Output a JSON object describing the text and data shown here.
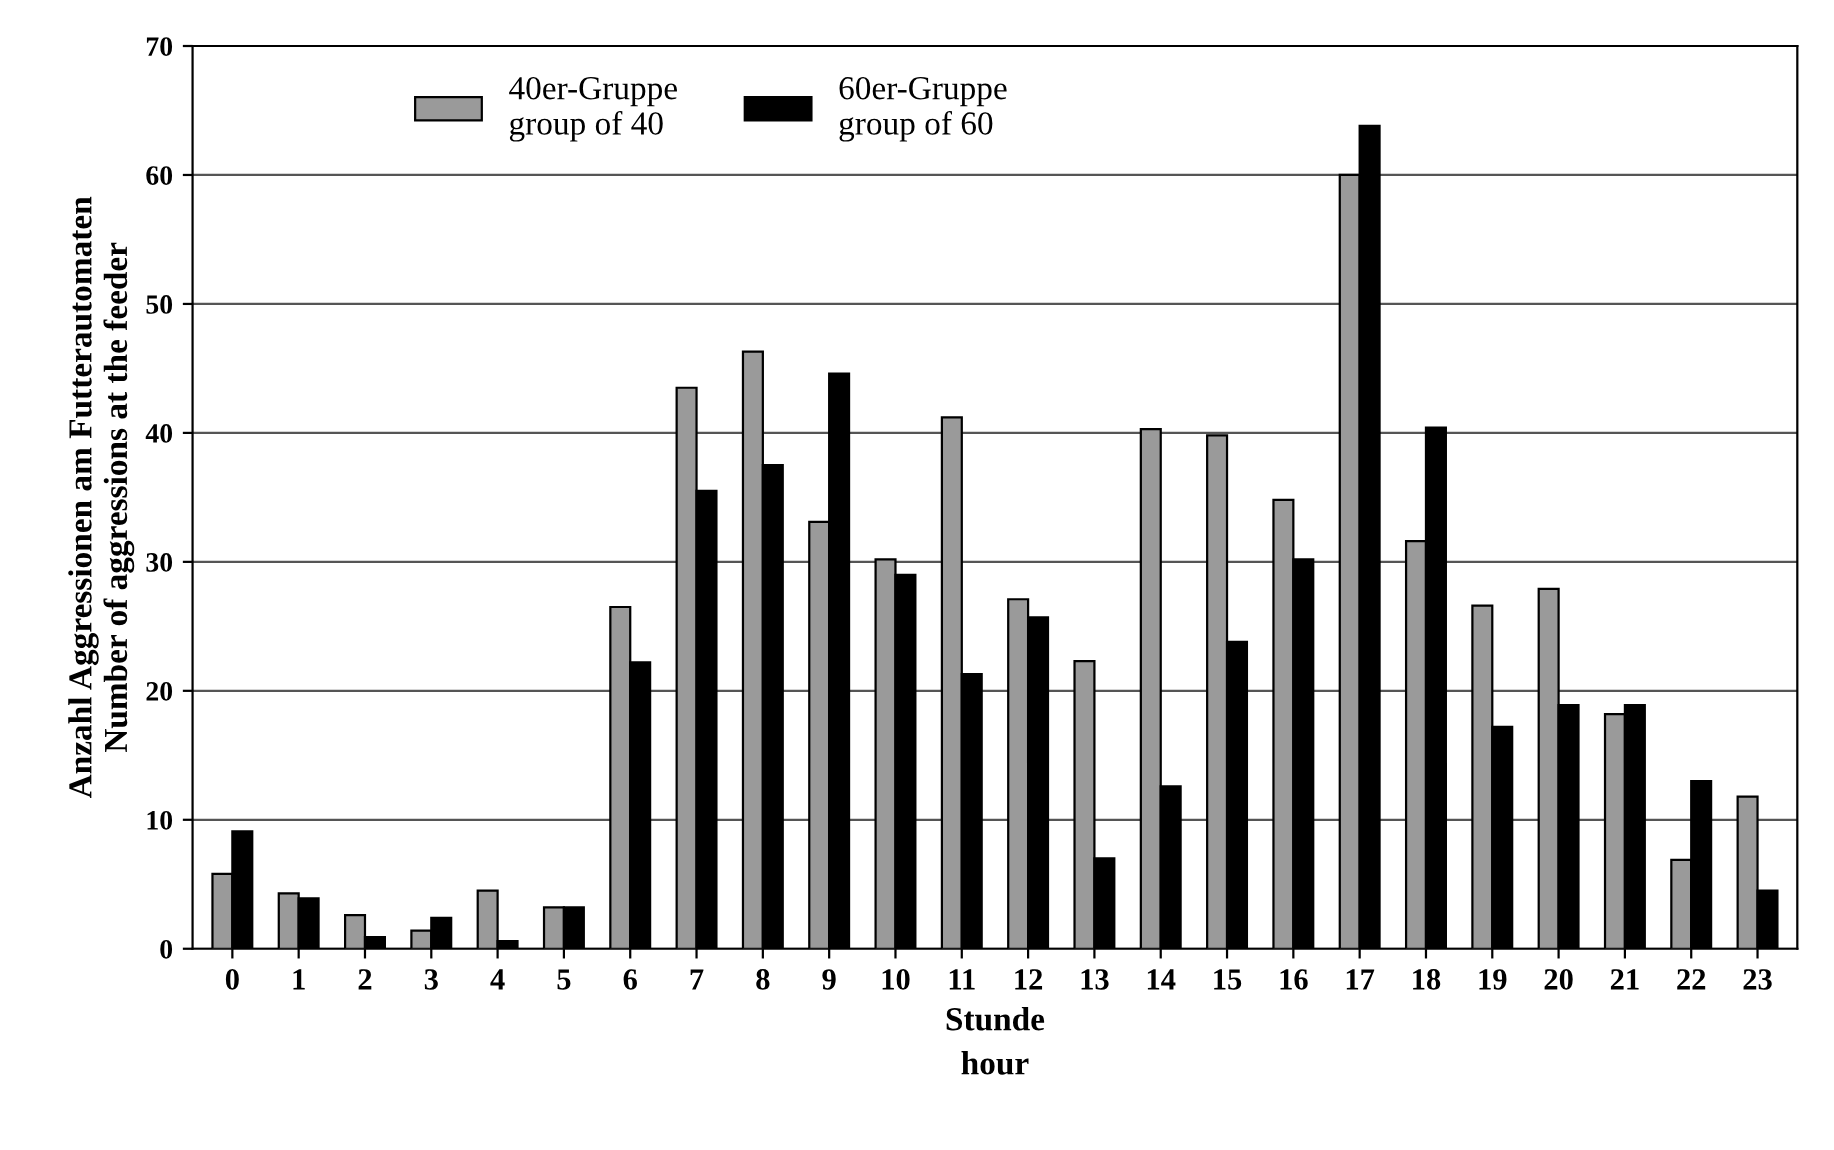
{
  "chart_data": {
    "type": "bar",
    "xlabel": "Stunde\nhour",
    "ylabel": "Anzahl Aggressionen am Futterautomaten\nNumber of aggressions at the feeder",
    "categories": [
      "0",
      "1",
      "2",
      "3",
      "4",
      "5",
      "6",
      "7",
      "8",
      "9",
      "10",
      "11",
      "12",
      "13",
      "14",
      "15",
      "16",
      "17",
      "18",
      "19",
      "20",
      "21",
      "22",
      "23"
    ],
    "series": [
      {
        "name": "40er-Gruppe\ngroup of 40",
        "color": "#9a9a9a",
        "values": [
          5.8,
          4.3,
          2.6,
          1.4,
          4.5,
          3.2,
          26.5,
          43.5,
          46.3,
          33.1,
          30.2,
          41.2,
          27.1,
          22.3,
          40.3,
          39.8,
          34.8,
          60,
          31.6,
          26.6,
          27.9,
          18.2,
          6.9,
          11.8
        ]
      },
      {
        "name": "60er-Gruppe\ngroup of 60",
        "color": "#000000",
        "values": [
          9.1,
          3.9,
          0.9,
          2.4,
          0.6,
          3.2,
          22.2,
          35.5,
          37.5,
          44.6,
          29,
          21.3,
          25.7,
          7,
          12.6,
          23.8,
          30.2,
          63.8,
          40.4,
          17.2,
          18.9,
          18.9,
          13,
          4.5
        ]
      }
    ],
    "ylim": [
      0,
      70
    ],
    "yticks": [
      0,
      10,
      20,
      30,
      40,
      50,
      60,
      70
    ],
    "grid": "y",
    "legend": "top left"
  }
}
